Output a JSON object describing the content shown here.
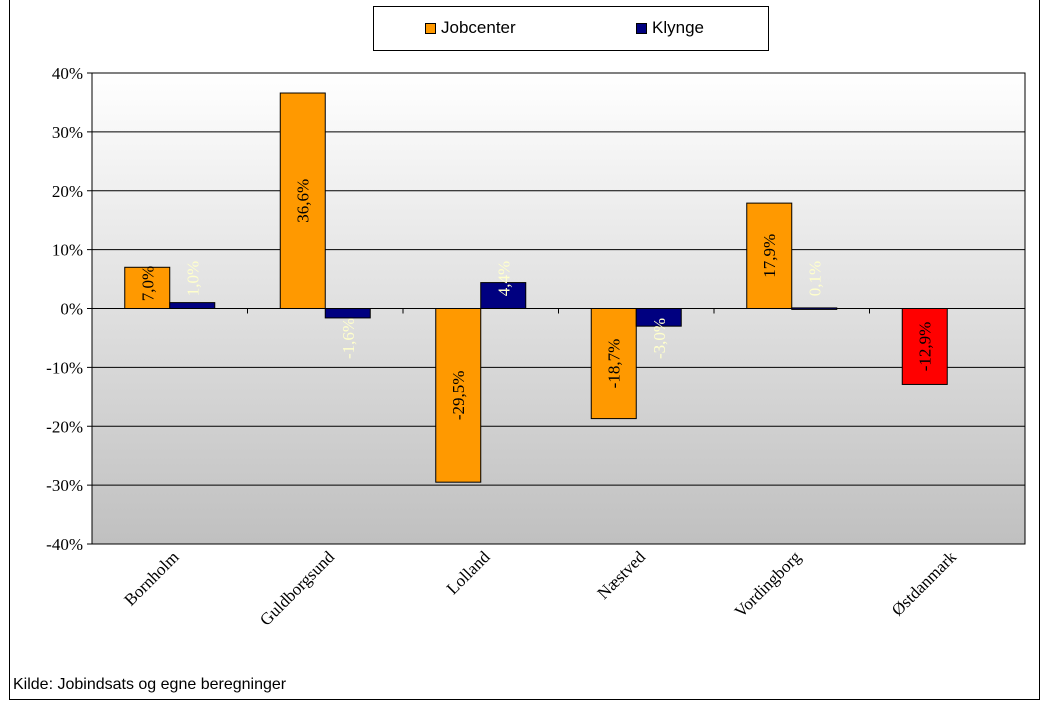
{
  "chart_data": {
    "type": "bar",
    "categories": [
      "Bornholm",
      "Guldborgsund",
      "Lolland",
      "Næstved",
      "Vordingborg",
      "Østdanmark"
    ],
    "series": [
      {
        "name": "Jobcenter",
        "color": "#ff9900",
        "values": [
          7.0,
          36.6,
          -29.5,
          -18.7,
          17.9,
          -12.9
        ],
        "labels": [
          "7,0%",
          "36,6%",
          "-29,5%",
          "-18,7%",
          "17,9%",
          "-12,9%"
        ],
        "point_colors": [
          "#ff9900",
          "#ff9900",
          "#ff9900",
          "#ff9900",
          "#ff9900",
          "#ff0000"
        ]
      },
      {
        "name": "Klynge",
        "color": "#000080",
        "values": [
          1.0,
          -1.6,
          4.4,
          -3.0,
          0.1,
          null
        ],
        "labels": [
          "1,0%",
          "-1,6%",
          "4,4%",
          "-3,0%",
          "0,1%",
          ""
        ]
      }
    ],
    "ylim": [
      -40,
      40
    ],
    "yticks": [
      40,
      30,
      20,
      10,
      0,
      -10,
      -20,
      -30,
      -40
    ],
    "ytick_labels": [
      "40%",
      "30%",
      "20%",
      "10%",
      "0%",
      "-10%",
      "-20%",
      "-30%",
      "-40%"
    ],
    "grid": true,
    "legend_position": "top-center",
    "title": "",
    "xlabel": "",
    "ylabel": ""
  },
  "source_note": "Kilde: Jobindsats og egne beregninger"
}
